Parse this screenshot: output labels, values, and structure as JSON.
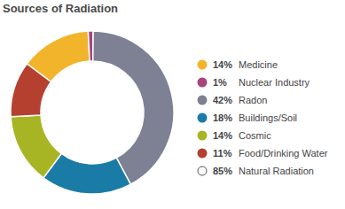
{
  "chart_data": {
    "type": "donut",
    "title": "Sources of Radiation",
    "categories": [
      "Medicine",
      "Nuclear Industry",
      "Radon",
      "Buildings/Soil",
      "Cosmic",
      "Food/Drinking Water"
    ],
    "values": [
      14,
      1,
      42,
      18,
      14,
      11
    ],
    "value_labels": [
      "14%",
      "1%",
      "42%",
      "18%",
      "14%",
      "11%"
    ],
    "colors": [
      "#f1b42a",
      "#a8457e",
      "#7e8094",
      "#1a7ca6",
      "#a7b524",
      "#b5402f"
    ],
    "legend": "right",
    "summary": {
      "value": 85,
      "value_label": "85%",
      "label": "Natural Radiation"
    }
  }
}
